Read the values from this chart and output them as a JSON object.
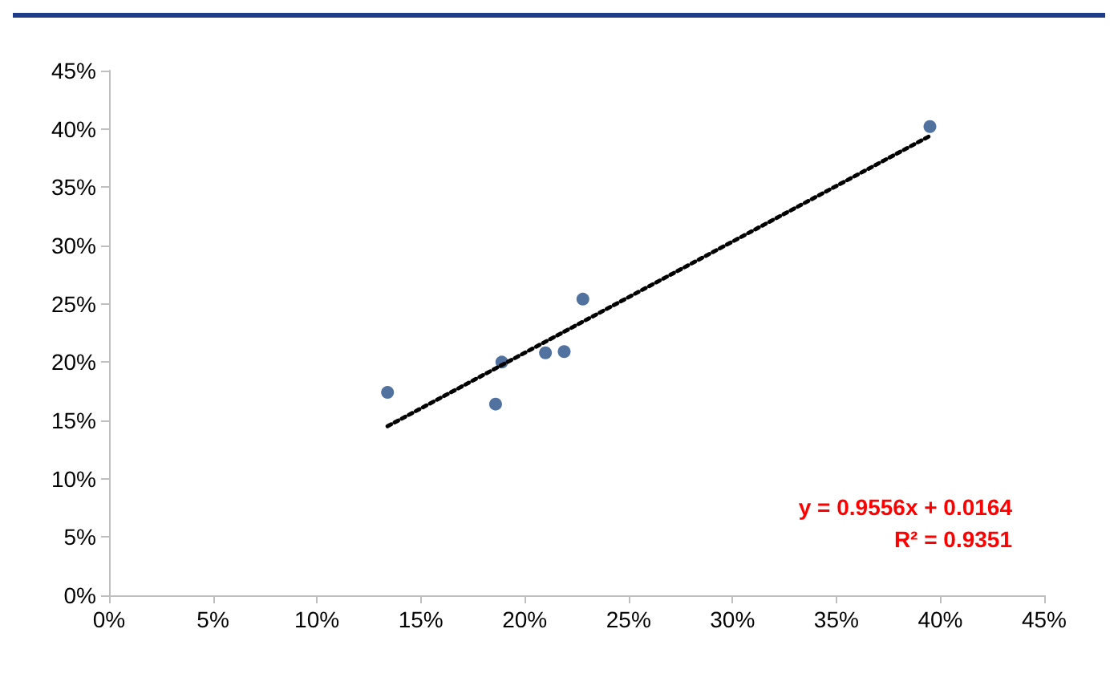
{
  "chart_data": {
    "type": "scatter",
    "xlim": [
      0,
      45
    ],
    "ylim": [
      0,
      45
    ],
    "xticks": [
      {
        "value": 0,
        "label": "0%"
      },
      {
        "value": 5,
        "label": "5%"
      },
      {
        "value": 10,
        "label": "10%"
      },
      {
        "value": 15,
        "label": "15%"
      },
      {
        "value": 20,
        "label": "20%"
      },
      {
        "value": 25,
        "label": "25%"
      },
      {
        "value": 30,
        "label": "30%"
      },
      {
        "value": 35,
        "label": "35%"
      },
      {
        "value": 40,
        "label": "40%"
      },
      {
        "value": 45,
        "label": "45%"
      }
    ],
    "yticks": [
      {
        "value": 0,
        "label": "0%"
      },
      {
        "value": 5,
        "label": "5%"
      },
      {
        "value": 10,
        "label": "10%"
      },
      {
        "value": 15,
        "label": "15%"
      },
      {
        "value": 20,
        "label": "20%"
      },
      {
        "value": 25,
        "label": "25%"
      },
      {
        "value": 30,
        "label": "30%"
      },
      {
        "value": 35,
        "label": "35%"
      },
      {
        "value": 40,
        "label": "40%"
      },
      {
        "value": 45,
        "label": "45%"
      }
    ],
    "grid": false,
    "marker": "circle",
    "series": [
      {
        "color": "#264d87",
        "x": [
          13.4,
          18.6,
          18.9,
          21.0,
          21.9,
          22.8,
          39.5
        ],
        "values": [
          17.4,
          16.4,
          20.0,
          20.8,
          20.9,
          25.4,
          40.2
        ]
      },
      {
        "type": "line",
        "color": "#000000",
        "line_style": "dotted",
        "marker": "none",
        "x": [
          13.4,
          39.5
        ],
        "values": [
          14.5,
          39.4
        ]
      }
    ],
    "annotations": [
      "y = 0.9556x + 0.0164",
      "R² = 0.9351"
    ]
  }
}
